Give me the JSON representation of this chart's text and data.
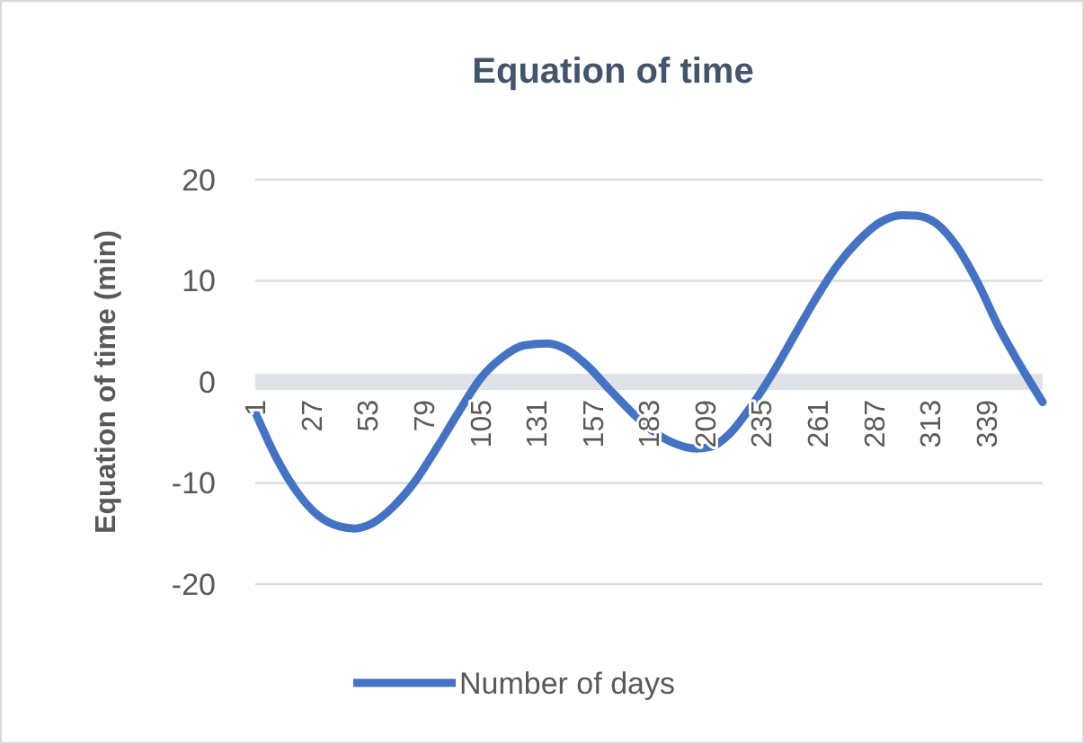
{
  "chart_data": {
    "type": "line",
    "title": "Equation of time",
    "ylabel": "Equation of time (min)",
    "x": [
      1,
      10,
      20,
      30,
      40,
      47,
      55,
      65,
      75,
      85,
      95,
      105,
      115,
      125,
      136,
      145,
      155,
      165,
      175,
      185,
      195,
      205,
      212,
      220,
      230,
      240,
      250,
      260,
      270,
      280,
      290,
      300,
      308,
      315,
      325,
      335,
      345,
      355,
      365
    ],
    "series": [
      {
        "name": "Number of days",
        "color": "#4472c4",
        "values": [
          -3,
          -7.2,
          -10.8,
          -13.2,
          -14.3,
          -14.5,
          -14,
          -12.3,
          -9.8,
          -6.5,
          -3,
          0.3,
          2.4,
          3.6,
          3.8,
          3.2,
          1.5,
          -0.8,
          -3,
          -4.9,
          -6.1,
          -6.6,
          -6.4,
          -5.2,
          -2.5,
          0.8,
          4.5,
          8.2,
          11.5,
          14,
          15.8,
          16.5,
          16.4,
          15.8,
          13.5,
          9.8,
          5.3,
          1.5,
          -2
        ]
      }
    ],
    "xlim": [
      1,
      365
    ],
    "xticks": [
      1,
      27,
      53,
      79,
      105,
      131,
      157,
      183,
      209,
      235,
      261,
      287,
      313,
      339
    ],
    "ylim": [
      -20,
      20
    ],
    "yticks": [
      -20,
      -10,
      0,
      10,
      20
    ],
    "grid": "y",
    "legend": "bottom",
    "marker": "none",
    "line_style": "solid"
  }
}
